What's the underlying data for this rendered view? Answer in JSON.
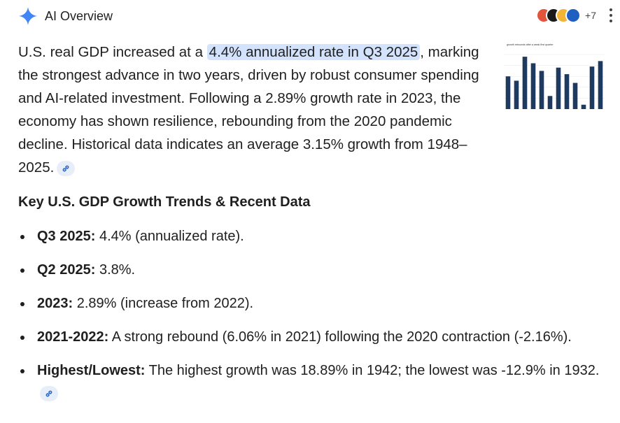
{
  "header": {
    "title": "AI Overview",
    "sources_more": "+7",
    "accent": "#4285f4"
  },
  "summary": {
    "before": "U.S. real GDP increased at a ",
    "highlight": "4.4% annualized rate in Q3 2025",
    "after": ", marking the strongest advance in two years, driven by robust consumer spending and AI-related investment. Following a 2.89% growth rate in 2023, the economy has shown resilience, rebounding from the 2020 pandemic decline. Historical data indicates an average 3.15% growth from 1948–2025."
  },
  "thumbnail": {
    "caption": "growth rebounds after a weak first quarter",
    "chart_data": {
      "type": "bar",
      "values": [
        3.0,
        2.6,
        4.8,
        4.2,
        3.5,
        1.2,
        3.8,
        3.2,
        2.4,
        0.4,
        3.9,
        4.4
      ],
      "color": "#1e3a5f"
    }
  },
  "section": {
    "title": "Key U.S. GDP Growth Trends & Recent Data"
  },
  "items": [
    {
      "label": "Q3 2025:",
      "text": " 4.4% (annualized rate)."
    },
    {
      "label": "Q2 2025:",
      "text": " 3.8%."
    },
    {
      "label": "2023:",
      "text": " 2.89% (increase from 2022)."
    },
    {
      "label": "2021-2022:",
      "text": " A strong rebound (6.06% in 2021) following the 2020 contraction (-2.16%)."
    },
    {
      "label": "Highest/Lowest:",
      "text": " The highest growth was 18.89% in 1942; the lowest was -12.9% in 1932."
    }
  ]
}
